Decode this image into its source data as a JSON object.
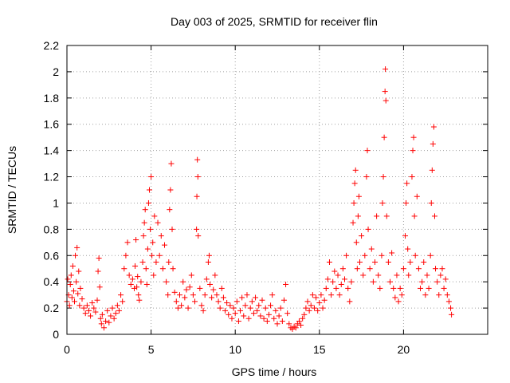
{
  "chart_data": {
    "type": "scatter",
    "title": "Day 003 of 2025, SRMTID for receiver flin",
    "xlabel": "GPS time / hours",
    "ylabel": "SRMTID / TECUs",
    "xlim": [
      0,
      25
    ],
    "ylim": [
      0,
      2.2
    ],
    "x_ticks": [
      0,
      5,
      10,
      15,
      20
    ],
    "y_ticks": [
      0,
      0.2,
      0.4,
      0.6,
      0.8,
      1,
      1.2,
      1.4,
      1.6,
      1.8,
      2,
      2.2
    ],
    "x_tick_labels": [
      "0",
      "5",
      "10",
      "15",
      "20"
    ],
    "y_tick_labels": [
      "0",
      "0.2",
      "0.4",
      "0.6",
      "0.8",
      "1",
      "1.2",
      "1.4",
      "1.6",
      "1.8",
      "2",
      "2.2"
    ],
    "grid": true,
    "marker": "+",
    "color": "#ff0000",
    "series": [
      {
        "name": "SRMTID",
        "points": [
          [
            0.0,
            0.25
          ],
          [
            0.05,
            0.42
          ],
          [
            0.1,
            0.3
          ],
          [
            0.15,
            0.22
          ],
          [
            0.2,
            0.38
          ],
          [
            0.25,
            0.45
          ],
          [
            0.3,
            0.28
          ],
          [
            0.35,
            0.52
          ],
          [
            0.4,
            0.33
          ],
          [
            0.45,
            0.25
          ],
          [
            0.5,
            0.6
          ],
          [
            0.55,
            0.4
          ],
          [
            0.6,
            0.66
          ],
          [
            0.65,
            0.31
          ],
          [
            0.7,
            0.48
          ],
          [
            0.75,
            0.22
          ],
          [
            0.8,
            0.35
          ],
          [
            0.9,
            0.27
          ],
          [
            1.0,
            0.2
          ],
          [
            1.1,
            0.16
          ],
          [
            1.2,
            0.22
          ],
          [
            1.3,
            0.18
          ],
          [
            1.4,
            0.14
          ],
          [
            1.5,
            0.24
          ],
          [
            1.6,
            0.2
          ],
          [
            1.7,
            0.17
          ],
          [
            1.8,
            0.26
          ],
          [
            1.85,
            0.48
          ],
          [
            1.9,
            0.58
          ],
          [
            1.95,
            0.36
          ],
          [
            2.0,
            0.12
          ],
          [
            2.05,
            0.08
          ],
          [
            2.1,
            0.15
          ],
          [
            2.2,
            0.05
          ],
          [
            2.3,
            0.1
          ],
          [
            2.4,
            0.18
          ],
          [
            2.5,
            0.09
          ],
          [
            2.6,
            0.14
          ],
          [
            2.7,
            0.2
          ],
          [
            2.8,
            0.12
          ],
          [
            2.9,
            0.16
          ],
          [
            3.0,
            0.22
          ],
          [
            3.1,
            0.18
          ],
          [
            3.2,
            0.3
          ],
          [
            3.3,
            0.25
          ],
          [
            3.4,
            0.5
          ],
          [
            3.5,
            0.6
          ],
          [
            3.6,
            0.7
          ],
          [
            3.7,
            0.45
          ],
          [
            3.8,
            0.38
          ],
          [
            3.9,
            0.42
          ],
          [
            4.0,
            0.35
          ],
          [
            4.05,
            0.52
          ],
          [
            4.1,
            0.72
          ],
          [
            4.15,
            0.36
          ],
          [
            4.2,
            0.44
          ],
          [
            4.25,
            0.3
          ],
          [
            4.3,
            0.26
          ],
          [
            4.4,
            0.4
          ],
          [
            4.5,
            0.55
          ],
          [
            4.55,
            0.75
          ],
          [
            4.6,
            0.85
          ],
          [
            4.65,
            0.95
          ],
          [
            4.7,
            0.5
          ],
          [
            4.75,
            0.38
          ],
          [
            4.8,
            0.65
          ],
          [
            4.85,
            1.0
          ],
          [
            4.9,
            1.1
          ],
          [
            4.95,
            0.8
          ],
          [
            5.0,
            1.2
          ],
          [
            5.05,
            0.6
          ],
          [
            5.1,
            0.7
          ],
          [
            5.15,
            0.45
          ],
          [
            5.2,
            0.9
          ],
          [
            5.3,
            0.55
          ],
          [
            5.4,
            0.85
          ],
          [
            5.5,
            0.6
          ],
          [
            5.6,
            0.75
          ],
          [
            5.7,
            0.5
          ],
          [
            5.8,
            0.68
          ],
          [
            5.9,
            0.4
          ],
          [
            6.0,
            0.3
          ],
          [
            6.05,
            0.55
          ],
          [
            6.1,
            0.95
          ],
          [
            6.15,
            1.1
          ],
          [
            6.2,
            1.3
          ],
          [
            6.25,
            0.8
          ],
          [
            6.3,
            0.5
          ],
          [
            6.4,
            0.32
          ],
          [
            6.5,
            0.25
          ],
          [
            6.6,
            0.2
          ],
          [
            6.7,
            0.3
          ],
          [
            6.8,
            0.22
          ],
          [
            6.9,
            0.4
          ],
          [
            7.0,
            0.28
          ],
          [
            7.1,
            0.34
          ],
          [
            7.2,
            0.2
          ],
          [
            7.3,
            0.36
          ],
          [
            7.4,
            0.45
          ],
          [
            7.5,
            0.3
          ],
          [
            7.6,
            0.25
          ],
          [
            7.7,
            0.8
          ],
          [
            7.72,
            1.05
          ],
          [
            7.75,
            1.33
          ],
          [
            7.78,
            1.2
          ],
          [
            7.8,
            0.75
          ],
          [
            7.9,
            0.35
          ],
          [
            8.0,
            0.22
          ],
          [
            8.1,
            0.18
          ],
          [
            8.2,
            0.3
          ],
          [
            8.3,
            0.42
          ],
          [
            8.4,
            0.55
          ],
          [
            8.45,
            0.6
          ],
          [
            8.5,
            0.38
          ],
          [
            8.6,
            0.28
          ],
          [
            8.7,
            0.34
          ],
          [
            8.8,
            0.45
          ],
          [
            8.9,
            0.3
          ],
          [
            9.0,
            0.25
          ],
          [
            9.1,
            0.2
          ],
          [
            9.2,
            0.35
          ],
          [
            9.3,
            0.28
          ],
          [
            9.4,
            0.18
          ],
          [
            9.5,
            0.24
          ],
          [
            9.6,
            0.15
          ],
          [
            9.7,
            0.22
          ],
          [
            9.8,
            0.12
          ],
          [
            9.9,
            0.2
          ],
          [
            10.0,
            0.16
          ],
          [
            10.1,
            0.25
          ],
          [
            10.2,
            0.1
          ],
          [
            10.3,
            0.18
          ],
          [
            10.4,
            0.28
          ],
          [
            10.5,
            0.14
          ],
          [
            10.6,
            0.22
          ],
          [
            10.7,
            0.3
          ],
          [
            10.8,
            0.12
          ],
          [
            10.9,
            0.2
          ],
          [
            11.0,
            0.25
          ],
          [
            11.1,
            0.16
          ],
          [
            11.2,
            0.28
          ],
          [
            11.3,
            0.18
          ],
          [
            11.4,
            0.22
          ],
          [
            11.5,
            0.14
          ],
          [
            11.6,
            0.26
          ],
          [
            11.7,
            0.12
          ],
          [
            11.8,
            0.2
          ],
          [
            11.9,
            0.1
          ],
          [
            12.0,
            0.15
          ],
          [
            12.1,
            0.22
          ],
          [
            12.2,
            0.3
          ],
          [
            12.3,
            0.12
          ],
          [
            12.4,
            0.18
          ],
          [
            12.5,
            0.08
          ],
          [
            12.6,
            0.14
          ],
          [
            12.7,
            0.2
          ],
          [
            12.8,
            0.1
          ],
          [
            12.9,
            0.26
          ],
          [
            13.0,
            0.38
          ],
          [
            13.1,
            0.16
          ],
          [
            13.2,
            0.08
          ],
          [
            13.3,
            0.05
          ],
          [
            13.4,
            0.04
          ],
          [
            13.5,
            0.06
          ],
          [
            13.6,
            0.05
          ],
          [
            13.7,
            0.08
          ],
          [
            13.8,
            0.1
          ],
          [
            13.9,
            0.07
          ],
          [
            14.0,
            0.12
          ],
          [
            14.1,
            0.15
          ],
          [
            14.2,
            0.2
          ],
          [
            14.3,
            0.25
          ],
          [
            14.4,
            0.18
          ],
          [
            14.5,
            0.22
          ],
          [
            14.6,
            0.3
          ],
          [
            14.7,
            0.2
          ],
          [
            14.8,
            0.28
          ],
          [
            14.9,
            0.18
          ],
          [
            15.0,
            0.24
          ],
          [
            15.1,
            0.3
          ],
          [
            15.2,
            0.2
          ],
          [
            15.3,
            0.26
          ],
          [
            15.4,
            0.35
          ],
          [
            15.5,
            0.42
          ],
          [
            15.6,
            0.55
          ],
          [
            15.7,
            0.3
          ],
          [
            15.8,
            0.4
          ],
          [
            15.9,
            0.48
          ],
          [
            16.0,
            0.35
          ],
          [
            16.1,
            0.45
          ],
          [
            16.2,
            0.3
          ],
          [
            16.3,
            0.38
          ],
          [
            16.4,
            0.5
          ],
          [
            16.5,
            0.42
          ],
          [
            16.6,
            0.6
          ],
          [
            16.7,
            0.35
          ],
          [
            16.8,
            0.25
          ],
          [
            16.9,
            0.4
          ],
          [
            17.0,
            0.85
          ],
          [
            17.05,
            1.0
          ],
          [
            17.1,
            1.15
          ],
          [
            17.15,
            1.25
          ],
          [
            17.2,
            0.7
          ],
          [
            17.25,
            0.5
          ],
          [
            17.3,
            0.9
          ],
          [
            17.35,
            1.05
          ],
          [
            17.4,
            0.55
          ],
          [
            17.5,
            0.75
          ],
          [
            17.6,
            0.45
          ],
          [
            17.7,
            0.6
          ],
          [
            17.8,
            1.2
          ],
          [
            17.85,
            1.4
          ],
          [
            17.9,
            0.8
          ],
          [
            18.0,
            0.5
          ],
          [
            18.1,
            0.65
          ],
          [
            18.2,
            0.4
          ],
          [
            18.3,
            0.55
          ],
          [
            18.4,
            0.9
          ],
          [
            18.5,
            0.45
          ],
          [
            18.6,
            0.35
          ],
          [
            18.7,
            0.6
          ],
          [
            18.75,
            1.0
          ],
          [
            18.8,
            1.2
          ],
          [
            18.85,
            1.5
          ],
          [
            18.9,
            1.85
          ],
          [
            18.92,
            2.02
          ],
          [
            18.95,
            1.78
          ],
          [
            19.0,
            0.9
          ],
          [
            19.1,
            0.55
          ],
          [
            19.2,
            0.4
          ],
          [
            19.3,
            0.62
          ],
          [
            19.4,
            0.35
          ],
          [
            19.5,
            0.28
          ],
          [
            19.6,
            0.45
          ],
          [
            19.7,
            0.25
          ],
          [
            19.8,
            0.35
          ],
          [
            19.9,
            0.3
          ],
          [
            20.0,
            0.5
          ],
          [
            20.1,
            0.75
          ],
          [
            20.15,
            1.0
          ],
          [
            20.2,
            1.15
          ],
          [
            20.25,
            0.65
          ],
          [
            20.3,
            0.45
          ],
          [
            20.4,
            0.55
          ],
          [
            20.5,
            1.2
          ],
          [
            20.55,
            1.4
          ],
          [
            20.6,
            1.5
          ],
          [
            20.65,
            0.9
          ],
          [
            20.7,
            0.6
          ],
          [
            20.8,
            1.05
          ],
          [
            20.9,
            0.5
          ],
          [
            21.0,
            0.35
          ],
          [
            21.1,
            0.4
          ],
          [
            21.2,
            0.55
          ],
          [
            21.3,
            0.3
          ],
          [
            21.4,
            0.45
          ],
          [
            21.5,
            0.35
          ],
          [
            21.6,
            0.6
          ],
          [
            21.65,
            1.0
          ],
          [
            21.7,
            1.25
          ],
          [
            21.75,
            1.45
          ],
          [
            21.8,
            1.58
          ],
          [
            21.85,
            0.9
          ],
          [
            21.9,
            0.5
          ],
          [
            22.0,
            0.4
          ],
          [
            22.1,
            0.3
          ],
          [
            22.2,
            0.45
          ],
          [
            22.3,
            0.5
          ],
          [
            22.4,
            0.35
          ],
          [
            22.5,
            0.42
          ],
          [
            22.6,
            0.3
          ],
          [
            22.7,
            0.25
          ],
          [
            22.8,
            0.2
          ],
          [
            22.85,
            0.15
          ]
        ]
      }
    ]
  }
}
